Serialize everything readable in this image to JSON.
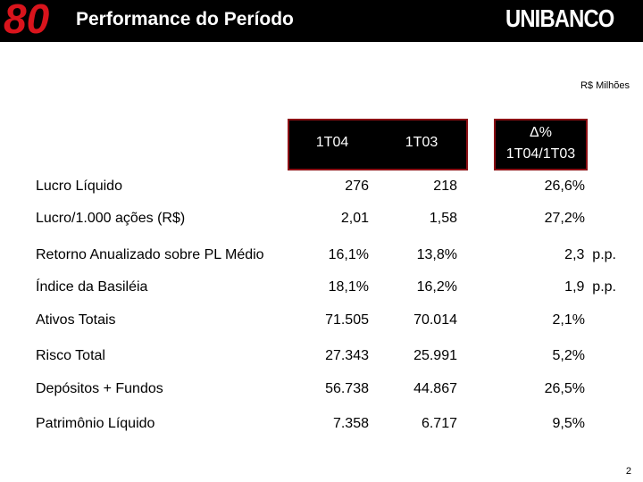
{
  "header": {
    "logo_left": "80",
    "title": "Performance do Período",
    "logo_right": "UNIBANCO"
  },
  "unit": "R$ Milhões",
  "table": {
    "columns": [
      "1T04",
      "1T03",
      [
        "Δ%",
        "1T04/1T03"
      ]
    ],
    "rows": [
      [
        "Lucro Líquido",
        "276",
        "218",
        "26,6%"
      ],
      [
        "Lucro/1.000 ações (R$)",
        "2,01",
        "1,58",
        "27,2%"
      ],
      [
        "Retorno Anualizado sobre PL Médio",
        "16,1%",
        "13,8%",
        "2,3  p.p."
      ],
      [
        "Índice da Basiléia",
        "18,1%",
        "16,2%",
        "1,9  p.p."
      ],
      [
        "Ativos Totais",
        "71.505",
        "70.014",
        "2,1%"
      ],
      [
        "Risco Total",
        "27.343",
        "25.991",
        "5,2%"
      ],
      [
        "Depósitos + Fundos",
        "56.738",
        "44.867",
        "26,5%"
      ],
      [
        "Patrimônio Líquido",
        "7.358",
        "6.717",
        "9,5%"
      ]
    ]
  },
  "page_number": "2"
}
